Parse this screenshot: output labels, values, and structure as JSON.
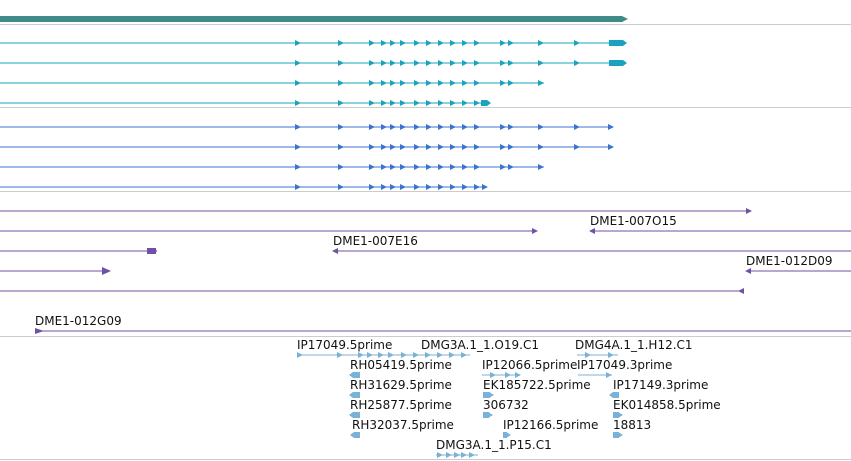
{
  "colors": {
    "gene_track": "#3f8b8a",
    "transcript_teal": "#1aa3bd",
    "transcript_blue": "#3b73d1",
    "clone_purple": "#6f51a6",
    "est_lightblue": "#7ab1d6",
    "separator": "#cccccc",
    "label_text": "#111111"
  },
  "tracks": {
    "clones": {
      "labels": [
        "DME1-007O15",
        "DME1-007E16",
        "DME1-012D09",
        "DME1-012G09"
      ]
    },
    "ests": {
      "labels": [
        "IP17049.5prime",
        "DMG3A.1_1.O19.C1",
        "DMG4A.1_1.H12.C1",
        "RH05419.5prime",
        "IP12066.5prime",
        "IP17049.3prime",
        "RH31629.5prime",
        "EK185722.5prime",
        "IP17149.3prime",
        "RH25877.5prime",
        "306732",
        "EK014858.5prime",
        "RH32037.5prime",
        "IP12166.5prime",
        "18813",
        "DMG3A.1_1.P15.C1"
      ]
    }
  }
}
